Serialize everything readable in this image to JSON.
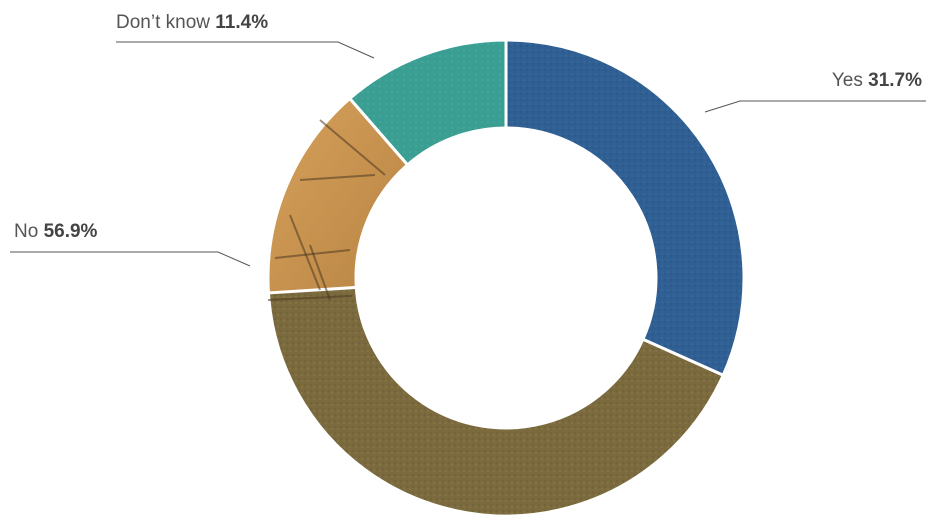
{
  "chart_data": {
    "type": "pie",
    "donut": true,
    "slices": [
      {
        "label": "Yes",
        "value": 31.7,
        "value_text": "31.7%",
        "color": "#2f5f93"
      },
      {
        "label": "No",
        "value": 56.9,
        "value_text": "56.9%",
        "color": "#b88a45"
      },
      {
        "label": "Don’t know",
        "value": 11.4,
        "value_text": "11.4%",
        "color": "#3a9e92"
      }
    ],
    "order": "clockwise from top: Yes, No, Don’t know",
    "background_note": "slices filled with a credit-card chip photograph texture"
  }
}
